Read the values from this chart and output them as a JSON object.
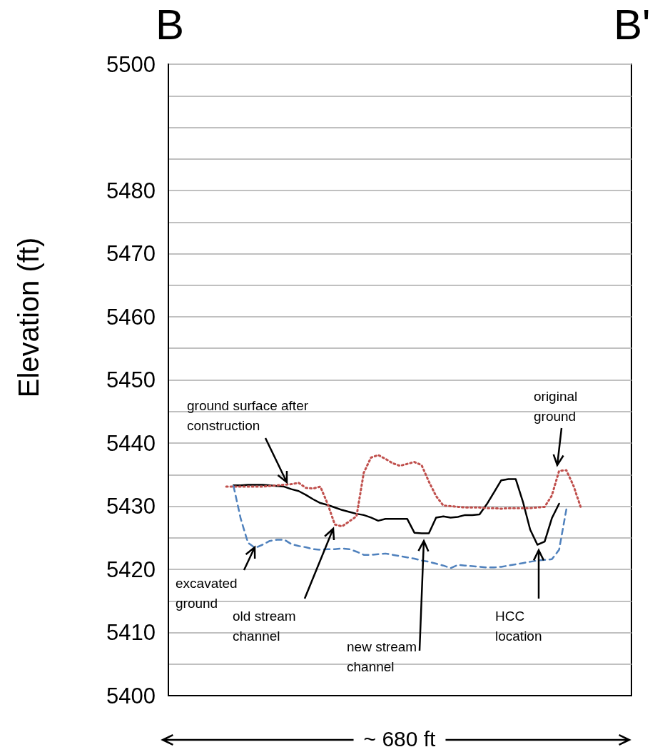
{
  "chart_data": {
    "type": "line",
    "ylabel": "Elevation (ft)",
    "xlabel": "~ 680 ft",
    "annotations": [
      "B",
      "B'",
      "ground surface after construction",
      "original ground",
      "excavated ground",
      "old stream channel",
      "new stream channel",
      "HCC location"
    ],
    "categories": [
      null,
      null,
      null,
      null,
      null,
      null,
      null,
      null,
      null,
      null,
      null,
      null,
      null,
      null,
      null,
      null,
      null,
      null,
      null,
      null,
      null,
      null,
      null,
      null,
      null,
      null,
      null,
      null,
      null,
      null,
      null,
      null,
      null,
      null,
      null,
      null,
      null,
      null,
      null,
      null,
      null,
      null,
      null,
      null,
      null,
      null,
      null,
      null,
      null,
      null,
      null,
      null,
      null,
      null,
      null,
      null,
      null,
      null,
      null,
      null,
      null,
      null,
      null,
      null,
      null
    ],
    "ylim": [
      5400,
      5500
    ],
    "yticks": [
      5400,
      {
        "value": 5405,
        "label": null
      },
      5410,
      {
        "value": 5415,
        "label": null
      },
      5420,
      {
        "value": 5425,
        "label": null
      },
      5430,
      {
        "value": 5435,
        "label": null
      },
      5440,
      {
        "value": 5445,
        "label": null
      },
      5450,
      {
        "value": 5455,
        "label": null
      },
      5460,
      {
        "value": 5465,
        "label": null
      },
      5470,
      {
        "value": 5475,
        "label": null
      },
      5480,
      {
        "value": 5485,
        "label": null
      },
      {
        "value": 5490,
        "label": null
      },
      {
        "value": 5495,
        "label": null
      },
      5500
    ],
    "grid": "y",
    "marker": "none",
    "tick_labels": "y",
    "series": [
      {
        "color": "#000000",
        "line_style": "solid",
        "values": [
          null,
          null,
          null,
          null,
          null,
          null,
          null,
          null,
          null,
          5433.3,
          5433.3,
          5433.4,
          5433.4,
          5433.4,
          5433.3,
          5433.2,
          5433.1,
          5432.7,
          5432.4,
          5431.8,
          5431.1,
          5430.5,
          5430.2,
          5429.8,
          5429.4,
          5429.1,
          5428.8,
          5428.6,
          5428.2,
          5427.7,
          5428.0,
          5428.0,
          5428.0,
          5428.0,
          5425.8,
          5425.7,
          5425.7,
          5428.2,
          5428.4,
          5428.2,
          5428.3,
          5428.6,
          5428.6,
          5428.7,
          5430.3,
          5432.2,
          5434.1,
          5434.3,
          5434.3,
          5430.7,
          5426.3,
          5423.9,
          5424.4,
          5428.1,
          5430.4,
          null,
          null,
          null,
          null,
          null,
          null,
          null,
          null,
          null,
          null
        ]
      },
      {
        "color": "#c0504d",
        "line_style": "dotted",
        "values": [
          null,
          null,
          null,
          null,
          null,
          null,
          null,
          null,
          5433.1,
          5433.1,
          5433.1,
          5433.1,
          5433.1,
          5433.1,
          5433.2,
          5433.3,
          5433.4,
          5433.5,
          5433.7,
          5432.9,
          5432.8,
          5433.1,
          5430.4,
          5427.1,
          5426.8,
          5427.6,
          5428.4,
          5435.3,
          5437.7,
          5438.1,
          5437.5,
          5436.8,
          5436.4,
          5436.7,
          5437.0,
          5436.5,
          5433.9,
          5431.6,
          5430.1,
          5430.0,
          5429.9,
          5429.8,
          5429.8,
          5429.8,
          5429.7,
          5429.7,
          5429.6,
          5429.7,
          5429.7,
          5429.7,
          5429.7,
          5429.8,
          5429.9,
          5431.7,
          5435.6,
          5435.7,
          5433.2,
          5429.8,
          null,
          null,
          null,
          null,
          null,
          null,
          null
        ]
      },
      {
        "color": "#4f81bd",
        "line_style": "dashed",
        "values": [
          null,
          null,
          null,
          null,
          null,
          null,
          null,
          null,
          null,
          5433.2,
          5428.0,
          5424.2,
          5423.4,
          5423.9,
          5424.5,
          5424.7,
          5424.7,
          5424.0,
          5423.7,
          5423.5,
          5423.2,
          5423.1,
          5423.2,
          5423.2,
          5423.3,
          5423.2,
          5422.8,
          5422.3,
          5422.3,
          5422.4,
          5422.5,
          5422.3,
          5422.1,
          5421.9,
          5421.7,
          5421.4,
          5421.2,
          5420.9,
          5420.6,
          5420.2,
          5420.7,
          5420.6,
          5420.5,
          5420.4,
          5420.3,
          5420.3,
          5420.4,
          5420.6,
          5420.8,
          5421.0,
          5421.2,
          5421.4,
          5421.5,
          5421.6,
          5423.1,
          5429.5,
          null,
          null,
          null,
          null,
          null,
          null,
          null,
          null,
          null
        ]
      }
    ]
  }
}
